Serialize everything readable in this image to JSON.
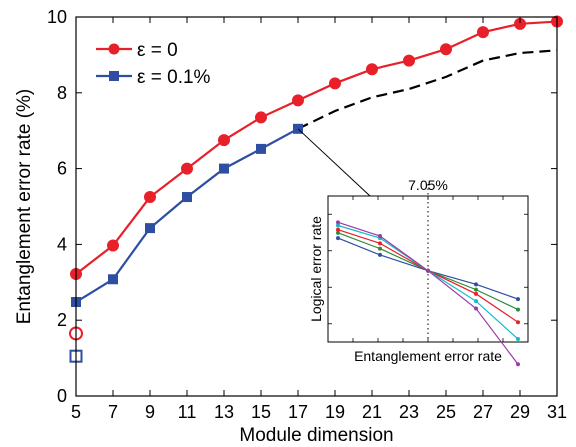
{
  "chart_data": {
    "type": "line",
    "xlabel": "Module dimension",
    "ylabel": "Entanglement error rate (%)",
    "xlim": [
      5,
      31
    ],
    "ylim": [
      0,
      10
    ],
    "xticks": [
      5,
      7,
      9,
      11,
      13,
      15,
      17,
      19,
      21,
      23,
      25,
      27,
      29,
      31
    ],
    "yticks": [
      0,
      2,
      4,
      6,
      8,
      10
    ],
    "legend_position": "top-left",
    "series": [
      {
        "name": "ε = 0",
        "color": "#e8202a",
        "marker": "circle",
        "x": [
          5,
          7,
          9,
          11,
          13,
          15,
          17,
          19,
          21,
          23,
          25,
          27,
          29,
          31
        ],
        "y": [
          3.22,
          3.97,
          5.25,
          6.0,
          6.75,
          7.35,
          7.8,
          8.25,
          8.62,
          8.85,
          9.15,
          9.6,
          9.82,
          9.88
        ],
        "open_point": {
          "x": 5,
          "y": 1.65
        }
      },
      {
        "name": "ε = 0.1%",
        "color": "#2e4fa1",
        "marker": "square",
        "x": [
          5,
          7,
          9,
          11,
          13,
          15,
          17
        ],
        "y": [
          2.48,
          3.08,
          4.43,
          5.25,
          6.0,
          6.52,
          7.05
        ],
        "open_point": {
          "x": 5,
          "y": 1.05
        },
        "extrapolated": {
          "style": "dashed",
          "color": "#000000",
          "x": [
            17,
            19,
            21,
            23,
            25,
            27,
            29,
            31
          ],
          "y": [
            7.05,
            7.52,
            7.88,
            8.1,
            8.42,
            8.85,
            9.05,
            9.12
          ]
        }
      }
    ],
    "inset": {
      "xlabel": "Entanglement error rate",
      "ylabel": "Logical error rate",
      "threshold_label": "7.05%",
      "connector_from": {
        "x": 17,
        "y": 7.05
      },
      "lines": [
        {
          "color": "#2e4fa1",
          "y": [
            0.78,
            0.62,
            0.47,
            0.34,
            0.2
          ]
        },
        {
          "color": "#2e8b3d",
          "y": [
            0.83,
            0.68,
            0.47,
            0.29,
            0.1
          ]
        },
        {
          "color": "#e8202a",
          "y": [
            0.86,
            0.73,
            0.47,
            0.25,
            -0.02
          ]
        },
        {
          "color": "#18b8c8",
          "y": [
            0.9,
            0.78,
            0.47,
            0.18,
            -0.18
          ]
        },
        {
          "color": "#9b3aa8",
          "y": [
            0.93,
            0.8,
            0.47,
            0.11,
            -0.42
          ]
        }
      ]
    }
  }
}
